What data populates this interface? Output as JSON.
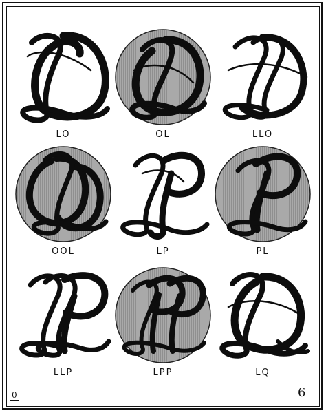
{
  "plate": {
    "monograms": [
      {
        "label": "LO",
        "shaded": false
      },
      {
        "label": "OL",
        "shaded": true
      },
      {
        "label": "LLO",
        "shaded": false
      },
      {
        "label": "OOL",
        "shaded": true
      },
      {
        "label": "LP",
        "shaded": false
      },
      {
        "label": "PL",
        "shaded": true
      },
      {
        "label": "LLP",
        "shaded": false
      },
      {
        "label": "LPP",
        "shaded": true
      },
      {
        "label": "LQ",
        "shaded": false
      }
    ],
    "plate_mark_left": "0",
    "plate_mark_right": "6"
  },
  "colors": {
    "ink": "#0d0d0d",
    "disc_fill": "#a9a9a9",
    "disc_stripe": "#8f8f8f",
    "paper": "#ffffff"
  }
}
